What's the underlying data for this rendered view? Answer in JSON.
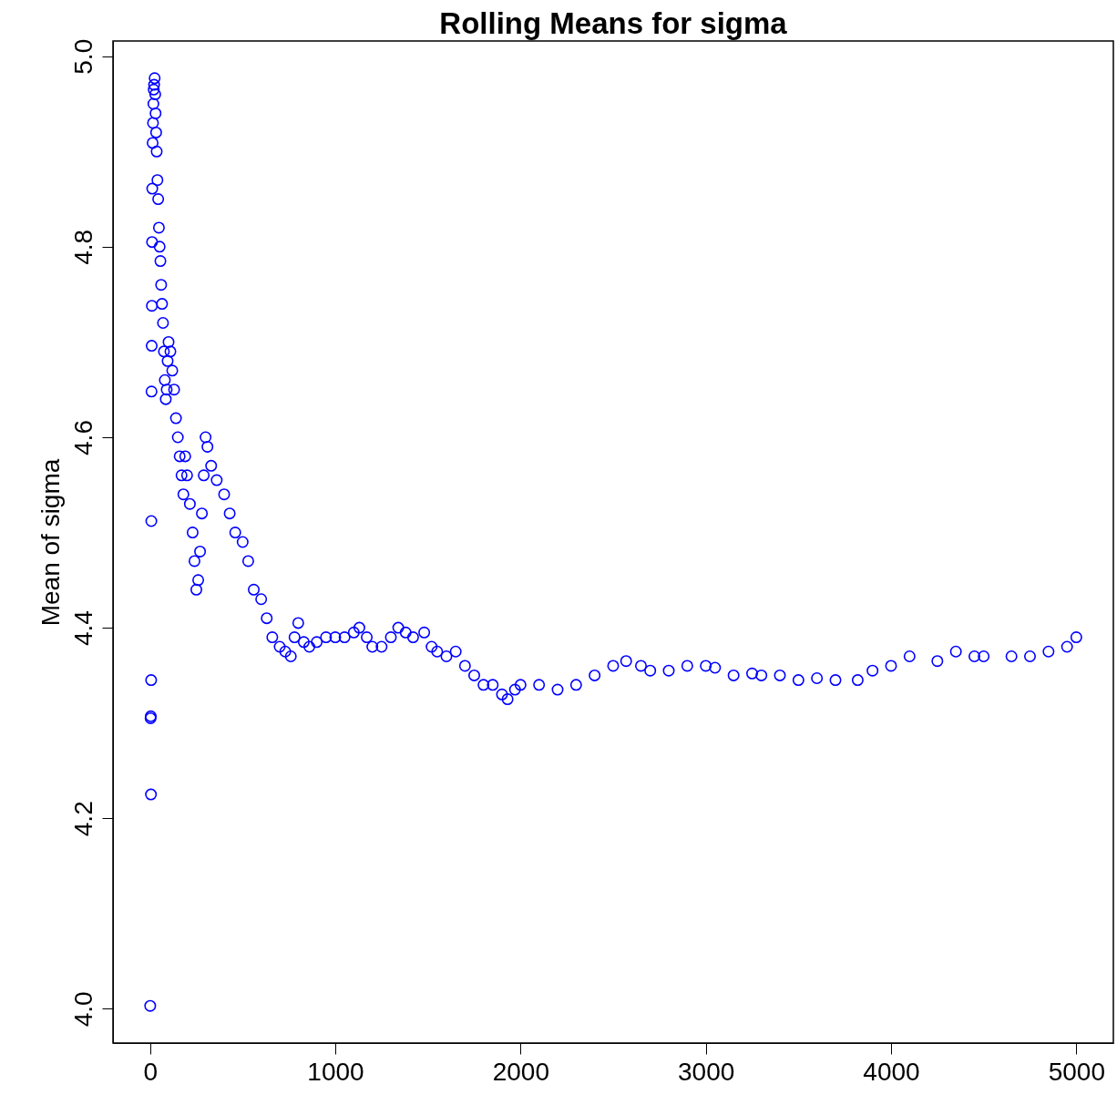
{
  "chart_data": {
    "type": "scatter",
    "title": "Rolling Means for sigma",
    "ylabel": "Mean of sigma",
    "xlim": [
      -200,
      5200
    ],
    "ylim": [
      3.964,
      5.016
    ],
    "xticks": [
      0,
      1000,
      2000,
      3000,
      4000,
      5000
    ],
    "yticks": [
      {
        "value": 4,
        "label": "4.0"
      },
      4.2,
      4.4,
      4.6,
      4.8,
      {
        "value": 5,
        "label": "5.0"
      }
    ],
    "grid": false,
    "marker": "circle",
    "series": [
      {
        "color": "#0000ff",
        "x": [
          1,
          3,
          4,
          5,
          6,
          7,
          8,
          9,
          10,
          11,
          12,
          14,
          16,
          18,
          20,
          22,
          25,
          28,
          30,
          33,
          36,
          40,
          44,
          48,
          52,
          56,
          60,
          65,
          70,
          75,
          80,
          85,
          90,
          95,
          100,
          110,
          120,
          130,
          140,
          150,
          160,
          170,
          180,
          190,
          200,
          215,
          230,
          240,
          250,
          260,
          270,
          280,
          290,
          300,
          310,
          330,
          360,
          400,
          430,
          460,
          500,
          530,
          560,
          600,
          630,
          660,
          700,
          730,
          760,
          780,
          800,
          830,
          860,
          900,
          950,
          1000,
          1050,
          1100,
          1130,
          1170,
          1200,
          1250,
          1300,
          1340,
          1380,
          1420,
          1480,
          1520,
          1550,
          1600,
          1650,
          1700,
          1750,
          1800,
          1850,
          1900,
          1930,
          1970,
          2000,
          2100,
          2200,
          2300,
          2400,
          2500,
          2570,
          2650,
          2700,
          2800,
          2900,
          3000,
          3050,
          3150,
          3250,
          3300,
          3400,
          3500,
          3600,
          3700,
          3820,
          3900,
          4000,
          4100,
          4250,
          4350,
          4450,
          4500,
          4650,
          4750,
          4850,
          4950,
          5000
        ],
        "values": [
          4.003,
          4.305,
          4.307,
          4.225,
          4.345,
          4.512,
          4.648,
          4.696,
          4.738,
          4.805,
          4.861,
          4.909,
          4.93,
          4.95,
          4.965,
          4.97,
          4.977,
          4.96,
          4.94,
          4.92,
          4.9,
          4.87,
          4.85,
          4.82,
          4.8,
          4.785,
          4.76,
          4.74,
          4.72,
          4.69,
          4.66,
          4.64,
          4.65,
          4.68,
          4.7,
          4.69,
          4.67,
          4.65,
          4.62,
          4.6,
          4.58,
          4.56,
          4.54,
          4.58,
          4.56,
          4.53,
          4.5,
          4.47,
          4.44,
          4.45,
          4.48,
          4.52,
          4.56,
          4.6,
          4.59,
          4.57,
          4.555,
          4.54,
          4.52,
          4.5,
          4.49,
          4.47,
          4.44,
          4.43,
          4.41,
          4.39,
          4.38,
          4.375,
          4.37,
          4.39,
          4.405,
          4.385,
          4.38,
          4.385,
          4.39,
          4.39,
          4.39,
          4.395,
          4.4,
          4.39,
          4.38,
          4.38,
          4.39,
          4.4,
          4.395,
          4.39,
          4.395,
          4.38,
          4.375,
          4.37,
          4.375,
          4.36,
          4.35,
          4.34,
          4.34,
          4.33,
          4.325,
          4.335,
          4.34,
          4.34,
          4.335,
          4.34,
          4.35,
          4.36,
          4.365,
          4.36,
          4.355,
          4.355,
          4.36,
          4.36,
          4.358,
          4.35,
          4.352,
          4.35,
          4.35,
          4.345,
          4.347,
          4.345,
          4.345,
          4.355,
          4.36,
          4.37,
          4.365,
          4.375,
          4.37,
          4.37,
          4.37,
          4.37,
          4.375,
          4.38,
          4.39
        ]
      }
    ]
  }
}
